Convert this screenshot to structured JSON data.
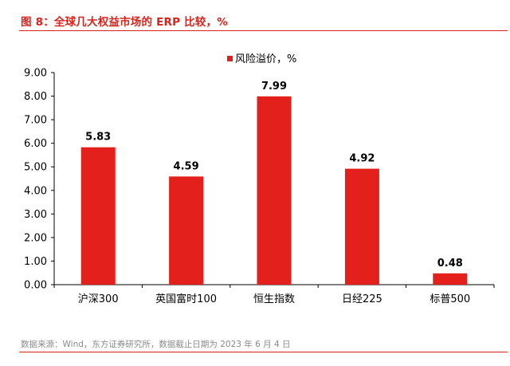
{
  "figure": {
    "title": "图 8：全球几大权益市场的 ERP 比较，%",
    "source": "数据来源：Wind，东方证券研究所，数据截止日期为 2023 年 6 月 4 日"
  },
  "colors": {
    "accent": "#d7231b",
    "bar": "#e3201b",
    "axis": "#000000"
  },
  "chart_data": {
    "type": "bar",
    "categories": [
      "沪深300",
      "英国富时100",
      "恒生指数",
      "日经225",
      "标普500"
    ],
    "series": [
      {
        "name": "风险溢价，%",
        "values": [
          5.83,
          4.59,
          7.99,
          4.92,
          0.48
        ]
      }
    ],
    "value_labels": [
      "5.83",
      "4.59",
      "7.99",
      "4.92",
      "0.48"
    ],
    "y_ticks": [
      "0.00",
      "1.00",
      "2.00",
      "3.00",
      "4.00",
      "5.00",
      "6.00",
      "7.00",
      "8.00",
      "9.00"
    ],
    "ylim": [
      0,
      9
    ],
    "legend_position": "top-center",
    "grid": false,
    "title": "",
    "xlabel": "",
    "ylabel": ""
  }
}
